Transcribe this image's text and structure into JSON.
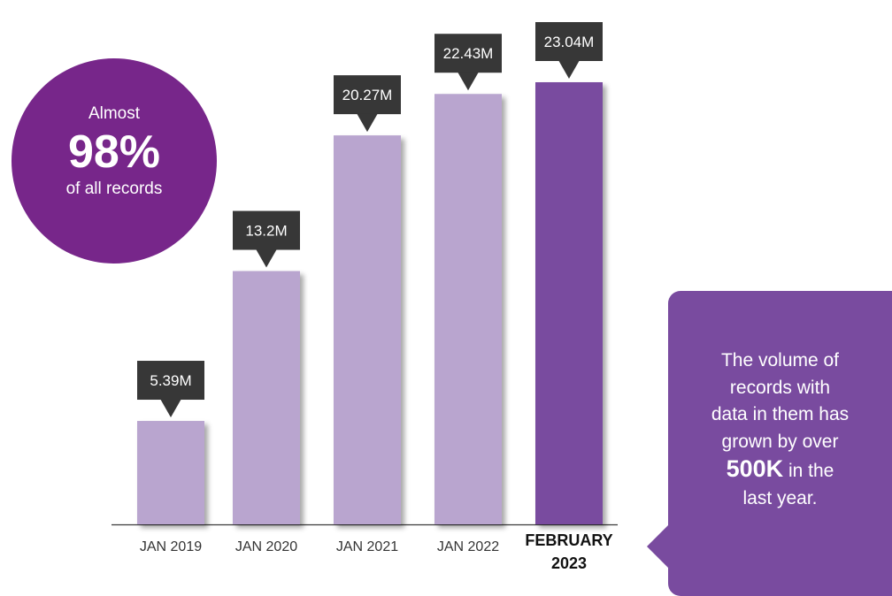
{
  "chart_data": {
    "type": "bar",
    "categories": [
      "JAN 2019",
      "JAN 2020",
      "JAN 2021",
      "JAN 2022",
      "FEBRUARY 2023"
    ],
    "category_lines": [
      [
        "JAN 2019"
      ],
      [
        "JAN 2020"
      ],
      [
        "JAN 2021"
      ],
      [
        "JAN 2022"
      ],
      [
        "FEBRUARY",
        "2023"
      ]
    ],
    "values": [
      5.39,
      13.2,
      20.27,
      22.43,
      23.04
    ],
    "data_labels": [
      "5.39M",
      "13.2M",
      "20.27M",
      "22.43M",
      "23.04M"
    ],
    "highlight_index": 4,
    "ylim": [
      0,
      23.04
    ],
    "grid": false,
    "colors": {
      "bar": "#b9a5cf",
      "highlight": "#794b9f",
      "label_box": "#373737"
    }
  },
  "badge": {
    "line1": "Almost",
    "line2": "98%",
    "line3": "of all records",
    "color": "#77268a"
  },
  "note": {
    "lines": [
      "The volume of",
      "records with",
      "data in them has",
      "grown by over"
    ],
    "highlight": "500K",
    "after_highlight": " in the",
    "last": "last year.",
    "color": "#794b9f"
  }
}
